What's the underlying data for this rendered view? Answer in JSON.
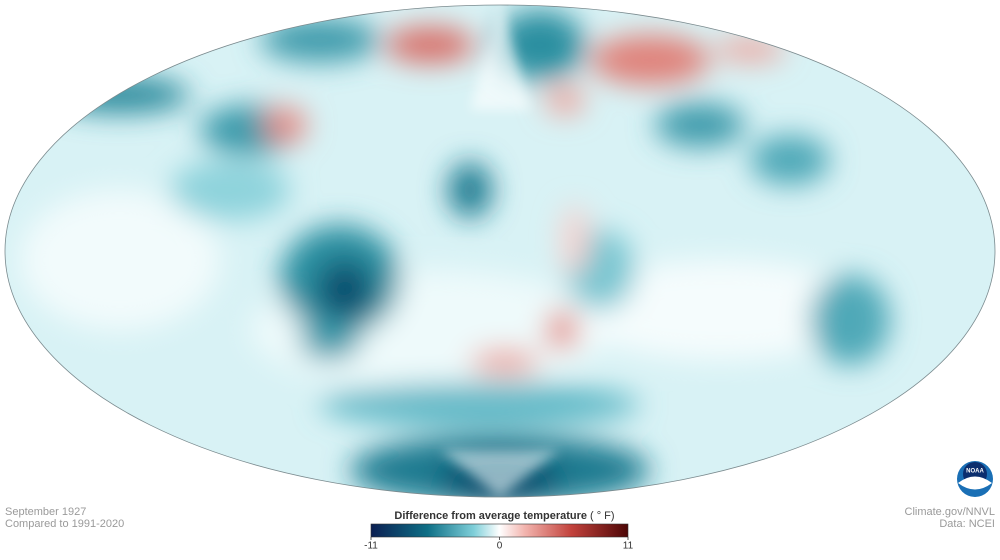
{
  "caption": {
    "period": "September 1927",
    "baseline": "Compared to 1991-2020"
  },
  "credits": {
    "source": "Climate.gov/NNVL",
    "data": "Data: NCEI"
  },
  "legend": {
    "title": "Difference from average temperature",
    "unit": "( ° F)",
    "min": -11,
    "max": 11,
    "ticks": [
      -11,
      0,
      11
    ]
  },
  "logo": "NOAA"
}
